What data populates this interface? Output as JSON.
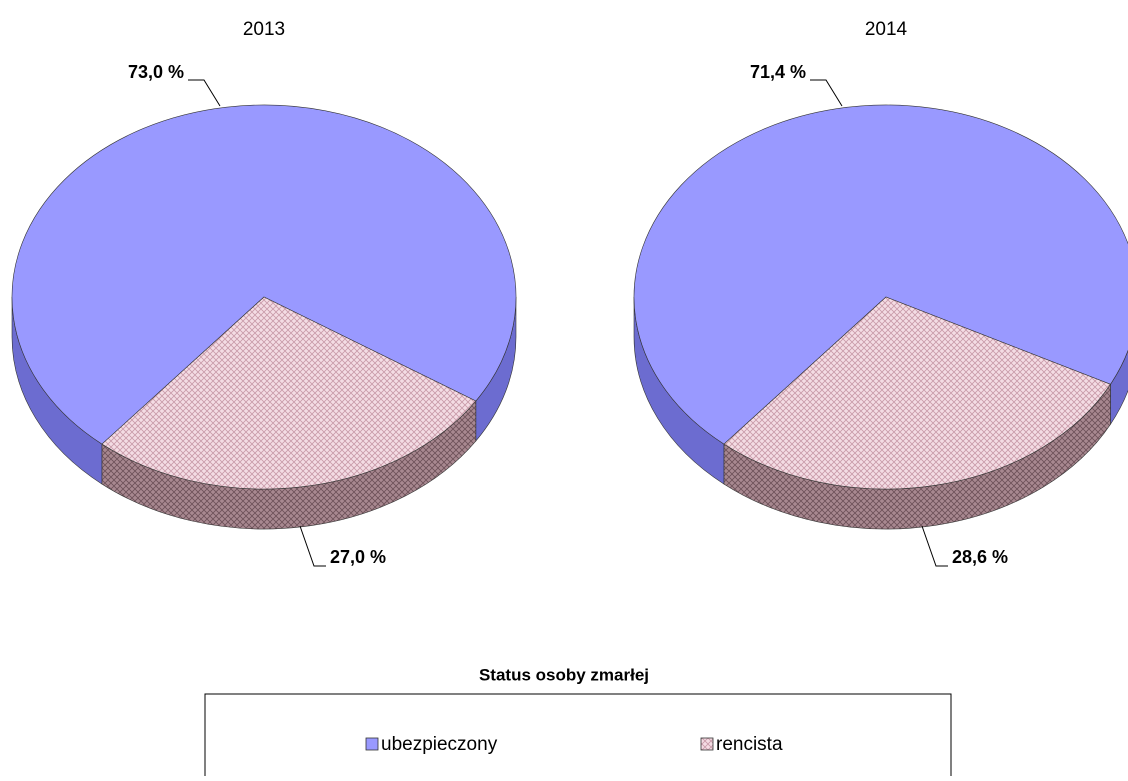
{
  "chart_data": [
    {
      "type": "pie",
      "title": "2013",
      "categories": [
        "ubezpieczony",
        "rencista"
      ],
      "values": [
        73.0,
        27.0
      ],
      "value_labels": [
        "73,0 %",
        "27,0 %"
      ],
      "colors": [
        "#9999ff",
        "#f4dce4"
      ]
    },
    {
      "type": "pie",
      "title": "2014",
      "categories": [
        "ubezpieczony",
        "rencista"
      ],
      "values": [
        71.4,
        28.6
      ],
      "value_labels": [
        "71,4 %",
        "28,6 %"
      ],
      "colors": [
        "#9999ff",
        "#f4dce4"
      ]
    }
  ],
  "legend": {
    "title": "Status osoby zmarłej"
  }
}
